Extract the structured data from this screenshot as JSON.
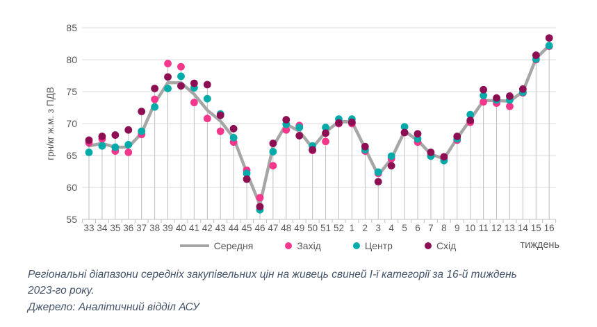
{
  "chart_data": {
    "type": "line",
    "title": "",
    "xlabel": "тиждень",
    "ylabel": "грн/кг ж.м. з ПДВ",
    "ylim": [
      55,
      85
    ],
    "yticks": [
      55,
      60,
      65,
      70,
      75,
      80,
      85
    ],
    "grid": "horizontal",
    "drop_lines": true,
    "legend_position": "bottom",
    "categories": [
      "33",
      "34",
      "35",
      "36",
      "37",
      "38",
      "39",
      "40",
      "41",
      "42",
      "43",
      "44",
      "45",
      "46",
      "47",
      "48",
      "49",
      "50",
      "51",
      "52",
      "1",
      "2",
      "3",
      "4",
      "5",
      "6",
      "7",
      "8",
      "9",
      "10",
      "11",
      "12",
      "13",
      "14",
      "15",
      "16"
    ],
    "series": [
      {
        "name": "Середня",
        "style": "line",
        "color": "#A6A6A6",
        "values": [
          66.5,
          66.9,
          66.3,
          66.3,
          68.5,
          73.2,
          76.4,
          76.4,
          74.6,
          72.1,
          70.4,
          67.8,
          62.3,
          57.3,
          66.4,
          69.9,
          68.8,
          66.2,
          68.7,
          70.3,
          70.3,
          66.1,
          61.9,
          64.5,
          68.8,
          67.4,
          65.2,
          64.5,
          67.7,
          70.6,
          73.6,
          73.6,
          73.5,
          75.0,
          80.2,
          82.2
        ]
      },
      {
        "name": "Захід",
        "style": "scatter",
        "color": "#F4368C",
        "values": [
          67.0,
          67.6,
          65.7,
          65.5,
          68.3,
          73.8,
          79.4,
          78.9,
          73.3,
          70.8,
          68.8,
          67.1,
          62.7,
          58.4,
          63.4,
          69.0,
          69.7,
          65.8,
          67.2,
          70.0,
          70.0,
          65.7,
          62.2,
          64.5,
          68.6,
          67.1,
          65.0,
          64.4,
          67.4,
          70.2,
          73.4,
          73.2,
          72.7,
          74.8,
          80.0,
          82.1
        ]
      },
      {
        "name": "Центр",
        "style": "scatter",
        "color": "#00ABA9",
        "values": [
          65.5,
          66.5,
          66.3,
          66.7,
          68.8,
          72.6,
          75.5,
          77.4,
          75.6,
          73.9,
          71.5,
          67.8,
          62.2,
          56.5,
          65.6,
          69.9,
          69.4,
          66.5,
          69.4,
          70.7,
          70.7,
          65.9,
          62.4,
          64.9,
          69.5,
          67.6,
          64.9,
          64.2,
          67.6,
          71.4,
          74.4,
          73.7,
          73.7,
          74.9,
          80.1,
          82.2
        ]
      },
      {
        "name": "Схід",
        "style": "scatter",
        "color": "#8E0E54",
        "values": [
          67.4,
          68.0,
          68.2,
          69.0,
          71.9,
          75.5,
          77.3,
          75.9,
          76.3,
          76.1,
          71.3,
          69.2,
          61.3,
          57.0,
          66.9,
          70.6,
          68.1,
          65.9,
          68.5,
          70.1,
          70.2,
          66.4,
          60.9,
          63.4,
          68.6,
          68.4,
          65.5,
          64.8,
          68.0,
          70.5,
          75.3,
          74.0,
          74.3,
          75.4,
          80.7,
          83.4
        ]
      }
    ],
    "colors": {
      "grid": "#D9D9D9",
      "axis": "#BFBFBF",
      "tick_text": "#595959",
      "average_line": "#A6A6A6"
    }
  },
  "caption": {
    "line1": "Регіональні діапазони середніх закупівельних цін на живець свиней І-ї категорії за 16-й тиждень",
    "line2": "2023-го року.",
    "source": "Джерело: Аналітичний відділ АСУ"
  }
}
